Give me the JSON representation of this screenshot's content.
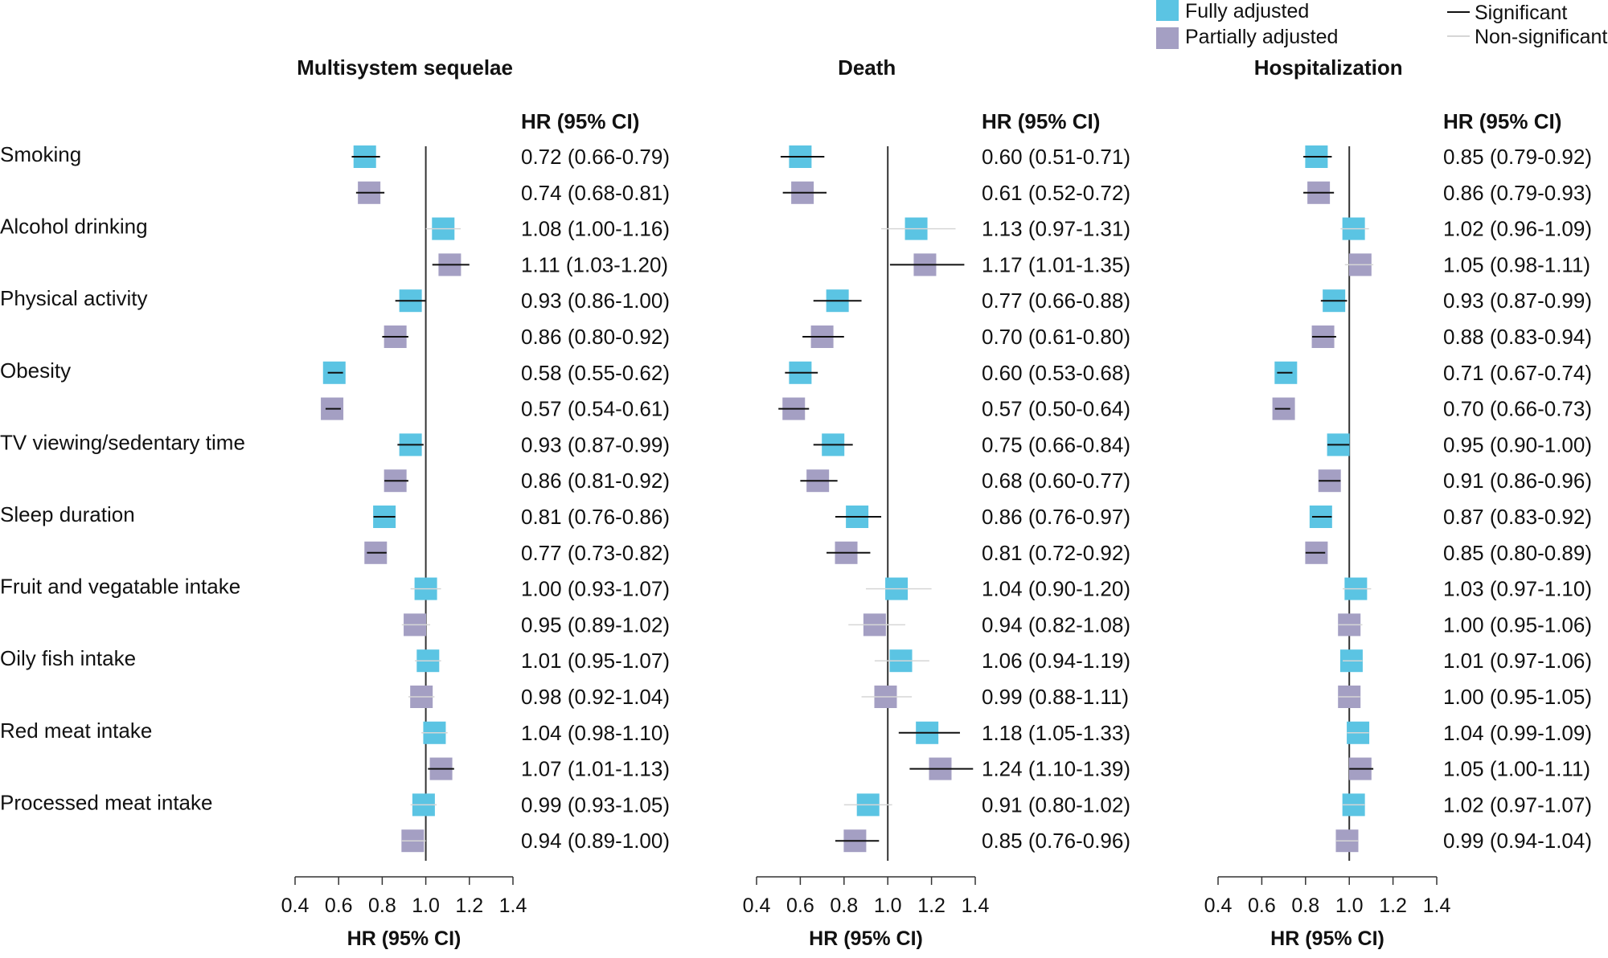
{
  "chart_data": {
    "type": "forest",
    "legend": {
      "placement": "top-right",
      "fill_entries": [
        {
          "label": "Fully adjusted",
          "color": "#5bc4e3"
        },
        {
          "label": "Partially adjusted",
          "color": "#a49fc3"
        }
      ],
      "line_entries": [
        {
          "label": "Significant",
          "color": "#111111"
        },
        {
          "label": "Non-significant",
          "color": "#d6d6d6"
        }
      ]
    },
    "factors": [
      "Smoking",
      "Alcohol drinking",
      "Physical activity",
      "Obesity",
      "TV viewing/sedentary time",
      "Sleep duration",
      "Fruit and vegatable intake",
      "Oily fish intake",
      "Red meat intake",
      "Processed meat intake"
    ],
    "column_header": "HR (95% CI)",
    "xlabel": "HR (95% CI)",
    "xlim": [
      0.4,
      1.4
    ],
    "xticks": [
      "0.4",
      "0.6",
      "0.8",
      "1.0",
      "1.2",
      "1.4"
    ],
    "reference_line": 1.0,
    "panels": [
      {
        "title": "Multisystem sequelae",
        "rows": [
          {
            "hr": 0.72,
            "lo": 0.66,
            "hi": 0.79,
            "label": "0.72 (0.66-0.79)",
            "sig": true
          },
          {
            "hr": 0.74,
            "lo": 0.68,
            "hi": 0.81,
            "label": "0.74 (0.68-0.81)",
            "sig": true
          },
          {
            "hr": 1.08,
            "lo": 1.0,
            "hi": 1.16,
            "label": "1.08 (1.00-1.16)",
            "sig": false
          },
          {
            "hr": 1.11,
            "lo": 1.03,
            "hi": 1.2,
            "label": "1.11 (1.03-1.20)",
            "sig": true
          },
          {
            "hr": 0.93,
            "lo": 0.86,
            "hi": 1.0,
            "label": "0.93 (0.86-1.00)",
            "sig": true
          },
          {
            "hr": 0.86,
            "lo": 0.8,
            "hi": 0.92,
            "label": "0.86 (0.80-0.92)",
            "sig": true
          },
          {
            "hr": 0.58,
            "lo": 0.55,
            "hi": 0.62,
            "label": "0.58 (0.55-0.62)",
            "sig": true
          },
          {
            "hr": 0.57,
            "lo": 0.54,
            "hi": 0.61,
            "label": "0.57 (0.54-0.61)",
            "sig": true
          },
          {
            "hr": 0.93,
            "lo": 0.87,
            "hi": 0.99,
            "label": "0.93 (0.87-0.99)",
            "sig": true
          },
          {
            "hr": 0.86,
            "lo": 0.81,
            "hi": 0.92,
            "label": "0.86 (0.81-0.92)",
            "sig": true
          },
          {
            "hr": 0.81,
            "lo": 0.76,
            "hi": 0.86,
            "label": "0.81 (0.76-0.86)",
            "sig": true
          },
          {
            "hr": 0.77,
            "lo": 0.73,
            "hi": 0.82,
            "label": "0.77 (0.73-0.82)",
            "sig": true
          },
          {
            "hr": 1.0,
            "lo": 0.93,
            "hi": 1.07,
            "label": "1.00 (0.93-1.07)",
            "sig": false
          },
          {
            "hr": 0.95,
            "lo": 0.89,
            "hi": 1.02,
            "label": "0.95 (0.89-1.02)",
            "sig": false
          },
          {
            "hr": 1.01,
            "lo": 0.95,
            "hi": 1.07,
            "label": "1.01 (0.95-1.07)",
            "sig": false
          },
          {
            "hr": 0.98,
            "lo": 0.92,
            "hi": 1.04,
            "label": "0.98 (0.92-1.04)",
            "sig": false
          },
          {
            "hr": 1.04,
            "lo": 0.98,
            "hi": 1.1,
            "label": "1.04 (0.98-1.10)",
            "sig": false
          },
          {
            "hr": 1.07,
            "lo": 1.01,
            "hi": 1.13,
            "label": "1.07 (1.01-1.13)",
            "sig": true
          },
          {
            "hr": 0.99,
            "lo": 0.93,
            "hi": 1.05,
            "label": "0.99 (0.93-1.05)",
            "sig": false
          },
          {
            "hr": 0.94,
            "lo": 0.89,
            "hi": 1.0,
            "label": "0.94 (0.89-1.00)",
            "sig": false
          }
        ]
      },
      {
        "title": "Death",
        "rows": [
          {
            "hr": 0.6,
            "lo": 0.51,
            "hi": 0.71,
            "label": "0.60 (0.51-0.71)",
            "sig": true
          },
          {
            "hr": 0.61,
            "lo": 0.52,
            "hi": 0.72,
            "label": "0.61 (0.52-0.72)",
            "sig": true
          },
          {
            "hr": 1.13,
            "lo": 0.97,
            "hi": 1.31,
            "label": "1.13 (0.97-1.31)",
            "sig": false
          },
          {
            "hr": 1.17,
            "lo": 1.01,
            "hi": 1.35,
            "label": "1.17 (1.01-1.35)",
            "sig": true
          },
          {
            "hr": 0.77,
            "lo": 0.66,
            "hi": 0.88,
            "label": "0.77 (0.66-0.88)",
            "sig": true
          },
          {
            "hr": 0.7,
            "lo": 0.61,
            "hi": 0.8,
            "label": "0.70 (0.61-0.80)",
            "sig": true
          },
          {
            "hr": 0.6,
            "lo": 0.53,
            "hi": 0.68,
            "label": "0.60 (0.53-0.68)",
            "sig": true
          },
          {
            "hr": 0.57,
            "lo": 0.5,
            "hi": 0.64,
            "label": "0.57 (0.50-0.64)",
            "sig": true
          },
          {
            "hr": 0.75,
            "lo": 0.66,
            "hi": 0.84,
            "label": "0.75 (0.66-0.84)",
            "sig": true
          },
          {
            "hr": 0.68,
            "lo": 0.6,
            "hi": 0.77,
            "label": "0.68 (0.60-0.77)",
            "sig": true
          },
          {
            "hr": 0.86,
            "lo": 0.76,
            "hi": 0.97,
            "label": "0.86 (0.76-0.97)",
            "sig": true
          },
          {
            "hr": 0.81,
            "lo": 0.72,
            "hi": 0.92,
            "label": "0.81 (0.72-0.92)",
            "sig": true
          },
          {
            "hr": 1.04,
            "lo": 0.9,
            "hi": 1.2,
            "label": "1.04 (0.90-1.20)",
            "sig": false
          },
          {
            "hr": 0.94,
            "lo": 0.82,
            "hi": 1.08,
            "label": "0.94 (0.82-1.08)",
            "sig": false
          },
          {
            "hr": 1.06,
            "lo": 0.94,
            "hi": 1.19,
            "label": "1.06 (0.94-1.19)",
            "sig": false
          },
          {
            "hr": 0.99,
            "lo": 0.88,
            "hi": 1.11,
            "label": "0.99 (0.88-1.11)",
            "sig": false
          },
          {
            "hr": 1.18,
            "lo": 1.05,
            "hi": 1.33,
            "label": "1.18 (1.05-1.33)",
            "sig": true
          },
          {
            "hr": 1.24,
            "lo": 1.1,
            "hi": 1.39,
            "label": "1.24 (1.10-1.39)",
            "sig": true
          },
          {
            "hr": 0.91,
            "lo": 0.8,
            "hi": 1.02,
            "label": "0.91 (0.80-1.02)",
            "sig": false
          },
          {
            "hr": 0.85,
            "lo": 0.76,
            "hi": 0.96,
            "label": "0.85 (0.76-0.96)",
            "sig": true
          }
        ]
      },
      {
        "title": "Hospitalization",
        "rows": [
          {
            "hr": 0.85,
            "lo": 0.79,
            "hi": 0.92,
            "label": "0.85 (0.79-0.92)",
            "sig": true
          },
          {
            "hr": 0.86,
            "lo": 0.79,
            "hi": 0.93,
            "label": "0.86 (0.79-0.93)",
            "sig": true
          },
          {
            "hr": 1.02,
            "lo": 0.96,
            "hi": 1.09,
            "label": "1.02 (0.96-1.09)",
            "sig": false
          },
          {
            "hr": 1.05,
            "lo": 0.98,
            "hi": 1.11,
            "label": "1.05 (0.98-1.11)",
            "sig": false
          },
          {
            "hr": 0.93,
            "lo": 0.87,
            "hi": 0.99,
            "label": "0.93 (0.87-0.99)",
            "sig": true
          },
          {
            "hr": 0.88,
            "lo": 0.83,
            "hi": 0.94,
            "label": "0.88 (0.83-0.94)",
            "sig": true
          },
          {
            "hr": 0.71,
            "lo": 0.67,
            "hi": 0.74,
            "label": "0.71 (0.67-0.74)",
            "sig": true
          },
          {
            "hr": 0.7,
            "lo": 0.66,
            "hi": 0.73,
            "label": "0.70 (0.66-0.73)",
            "sig": true
          },
          {
            "hr": 0.95,
            "lo": 0.9,
            "hi": 1.0,
            "label": "0.95 (0.90-1.00)",
            "sig": true
          },
          {
            "hr": 0.91,
            "lo": 0.86,
            "hi": 0.96,
            "label": "0.91 (0.86-0.96)",
            "sig": true
          },
          {
            "hr": 0.87,
            "lo": 0.83,
            "hi": 0.92,
            "label": "0.87 (0.83-0.92)",
            "sig": true
          },
          {
            "hr": 0.85,
            "lo": 0.8,
            "hi": 0.89,
            "label": "0.85 (0.80-0.89)",
            "sig": true
          },
          {
            "hr": 1.03,
            "lo": 0.97,
            "hi": 1.1,
            "label": "1.03 (0.97-1.10)",
            "sig": false
          },
          {
            "hr": 1.0,
            "lo": 0.95,
            "hi": 1.06,
            "label": "1.00 (0.95-1.06)",
            "sig": false
          },
          {
            "hr": 1.01,
            "lo": 0.97,
            "hi": 1.06,
            "label": "1.01 (0.97-1.06)",
            "sig": false
          },
          {
            "hr": 1.0,
            "lo": 0.95,
            "hi": 1.05,
            "label": "1.00 (0.95-1.05)",
            "sig": false
          },
          {
            "hr": 1.04,
            "lo": 0.99,
            "hi": 1.09,
            "label": "1.04 (0.99-1.09)",
            "sig": false
          },
          {
            "hr": 1.05,
            "lo": 1.0,
            "hi": 1.11,
            "label": "1.05 (1.00-1.11)",
            "sig": true
          },
          {
            "hr": 1.02,
            "lo": 0.97,
            "hi": 1.07,
            "label": "1.02 (0.97-1.07)",
            "sig": false
          },
          {
            "hr": 0.99,
            "lo": 0.94,
            "hi": 1.04,
            "label": "0.99 (0.94-1.04)",
            "sig": false
          }
        ]
      }
    ]
  }
}
